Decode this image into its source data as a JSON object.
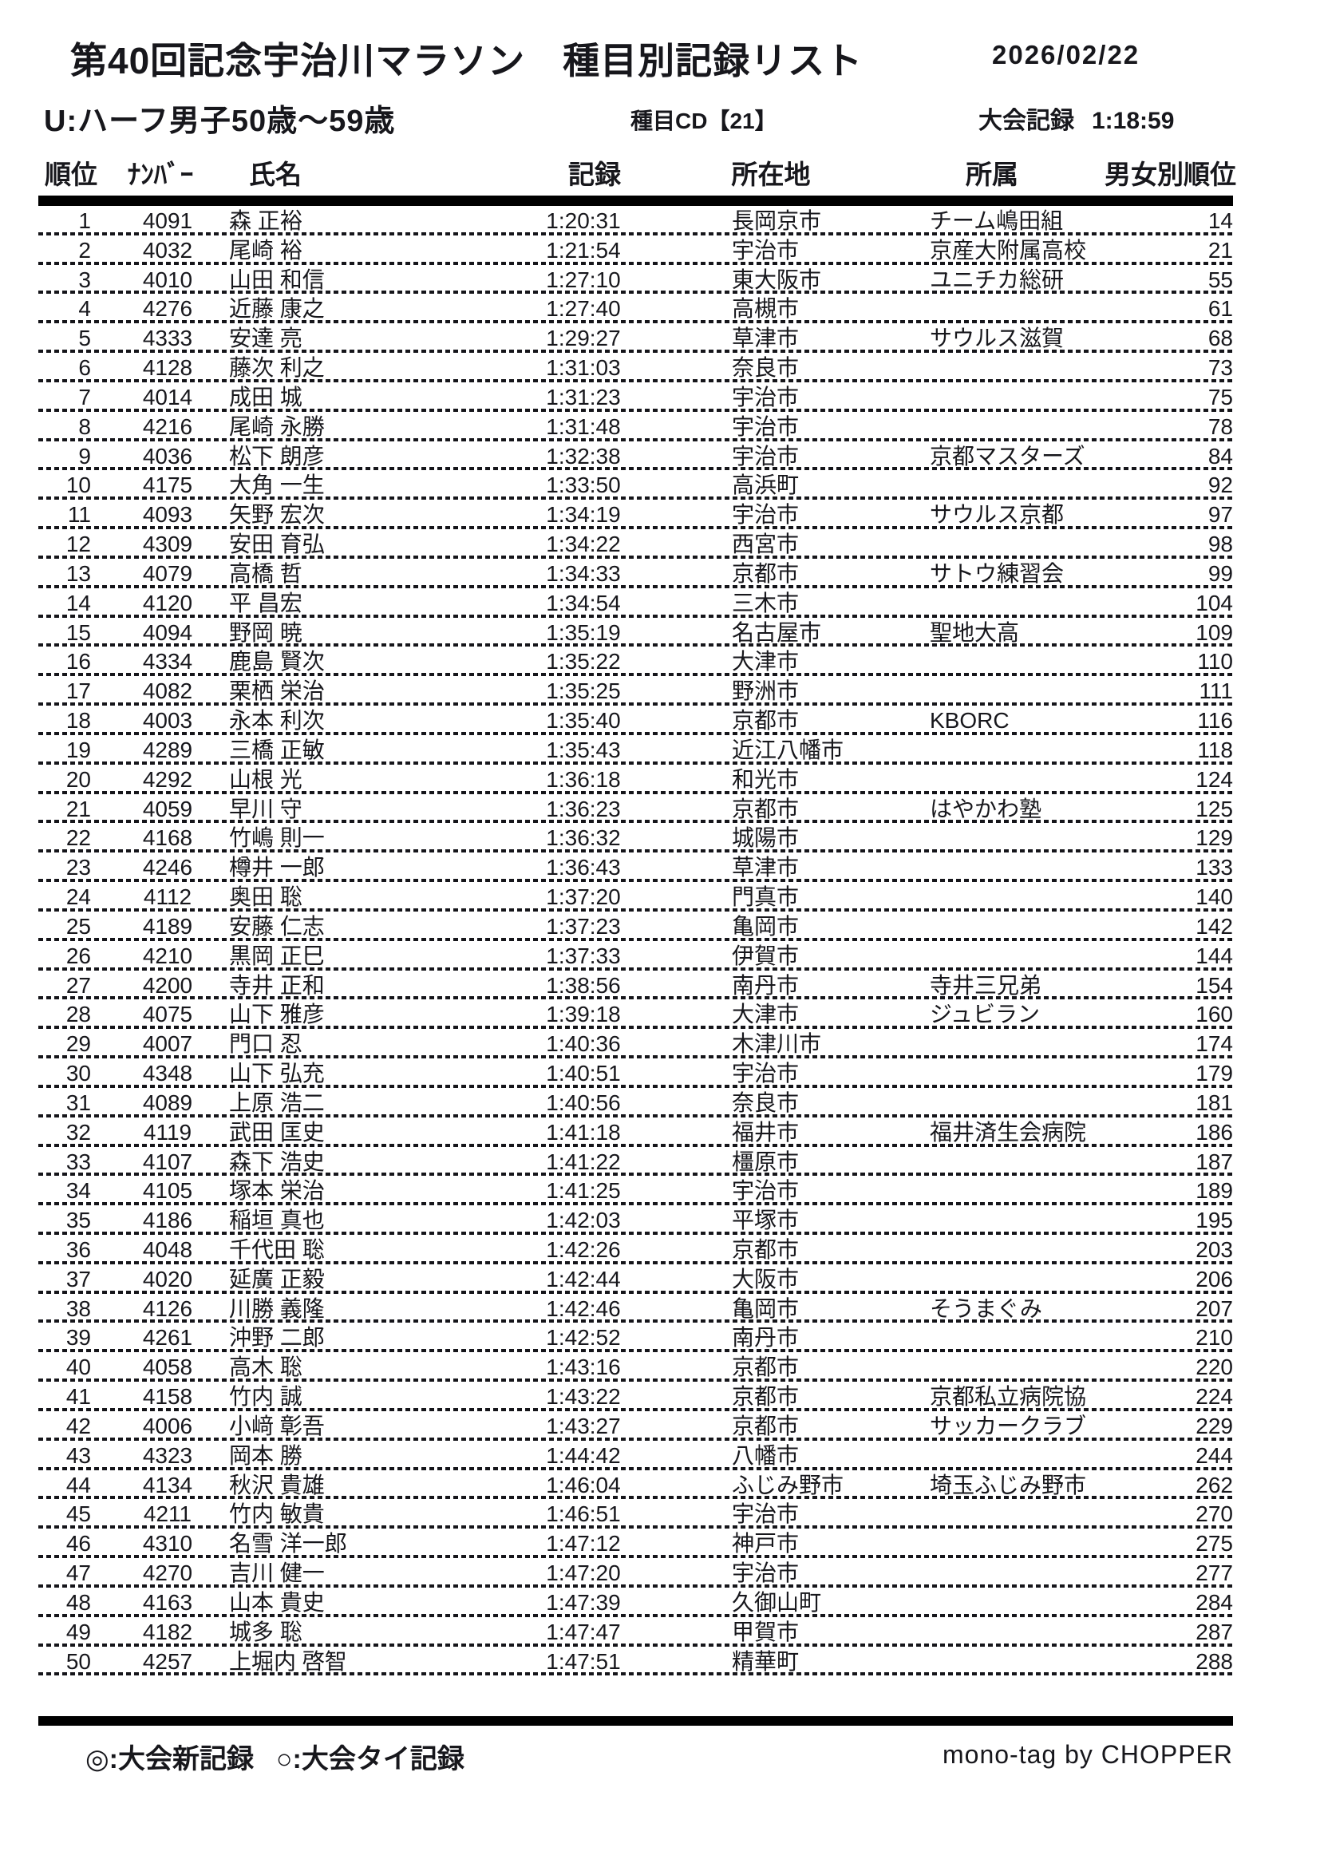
{
  "page": {
    "title": "第40回記念宇治川マラソン　種目別記録リスト",
    "date": "2026/02/22",
    "category": "U:ハーフ男子50歳～59歳",
    "event_cd": "種目CD【21】",
    "meet_record_label": "大会記録",
    "meet_record_value": "1:18:59"
  },
  "table": {
    "headers": {
      "rank": "順位",
      "number": "ﾅﾝﾊﾞｰ",
      "name": "氏名",
      "record": "記録",
      "location": "所在地",
      "affiliation": "所属",
      "gender_rank": "男女別順位"
    },
    "rows": [
      {
        "rank": "1",
        "number": "4091",
        "name": "森 正裕",
        "record": "1:20:31",
        "location": "長岡京市",
        "affiliation": "チーム嶋田組",
        "gender_rank": "14"
      },
      {
        "rank": "2",
        "number": "4032",
        "name": "尾崎 裕",
        "record": "1:21:54",
        "location": "宇治市",
        "affiliation": "京産大附属高校",
        "gender_rank": "21"
      },
      {
        "rank": "3",
        "number": "4010",
        "name": "山田 和信",
        "record": "1:27:10",
        "location": "東大阪市",
        "affiliation": "ユニチカ総研",
        "gender_rank": "55"
      },
      {
        "rank": "4",
        "number": "4276",
        "name": "近藤 康之",
        "record": "1:27:40",
        "location": "高槻市",
        "affiliation": "",
        "gender_rank": "61"
      },
      {
        "rank": "5",
        "number": "4333",
        "name": "安達 亮",
        "record": "1:29:27",
        "location": "草津市",
        "affiliation": "サウルス滋賀",
        "gender_rank": "68"
      },
      {
        "rank": "6",
        "number": "4128",
        "name": "藤次 利之",
        "record": "1:31:03",
        "location": "奈良市",
        "affiliation": "",
        "gender_rank": "73"
      },
      {
        "rank": "7",
        "number": "4014",
        "name": "成田 城",
        "record": "1:31:23",
        "location": "宇治市",
        "affiliation": "",
        "gender_rank": "75"
      },
      {
        "rank": "8",
        "number": "4216",
        "name": "尾崎 永勝",
        "record": "1:31:48",
        "location": "宇治市",
        "affiliation": "",
        "gender_rank": "78"
      },
      {
        "rank": "9",
        "number": "4036",
        "name": "松下 朗彦",
        "record": "1:32:38",
        "location": "宇治市",
        "affiliation": "京都マスターズ",
        "gender_rank": "84"
      },
      {
        "rank": "10",
        "number": "4175",
        "name": "大角 一生",
        "record": "1:33:50",
        "location": "高浜町",
        "affiliation": "",
        "gender_rank": "92"
      },
      {
        "rank": "11",
        "number": "4093",
        "name": "矢野 宏次",
        "record": "1:34:19",
        "location": "宇治市",
        "affiliation": "サウルス京都",
        "gender_rank": "97"
      },
      {
        "rank": "12",
        "number": "4309",
        "name": "安田 育弘",
        "record": "1:34:22",
        "location": "西宮市",
        "affiliation": "",
        "gender_rank": "98"
      },
      {
        "rank": "13",
        "number": "4079",
        "name": "高橋 哲",
        "record": "1:34:33",
        "location": "京都市",
        "affiliation": "サトウ練習会",
        "gender_rank": "99"
      },
      {
        "rank": "14",
        "number": "4120",
        "name": "平 昌宏",
        "record": "1:34:54",
        "location": "三木市",
        "affiliation": "",
        "gender_rank": "104"
      },
      {
        "rank": "15",
        "number": "4094",
        "name": "野岡 暁",
        "record": "1:35:19",
        "location": "名古屋市",
        "affiliation": "聖地大高",
        "gender_rank": "109"
      },
      {
        "rank": "16",
        "number": "4334",
        "name": "鹿島 賢次",
        "record": "1:35:22",
        "location": "大津市",
        "affiliation": "",
        "gender_rank": "110"
      },
      {
        "rank": "17",
        "number": "4082",
        "name": "栗栖 栄治",
        "record": "1:35:25",
        "location": "野洲市",
        "affiliation": "",
        "gender_rank": "111"
      },
      {
        "rank": "18",
        "number": "4003",
        "name": "永本 利次",
        "record": "1:35:40",
        "location": "京都市",
        "affiliation": "KBORC",
        "gender_rank": "116"
      },
      {
        "rank": "19",
        "number": "4289",
        "name": "三橋 正敏",
        "record": "1:35:43",
        "location": "近江八幡市",
        "affiliation": "",
        "gender_rank": "118"
      },
      {
        "rank": "20",
        "number": "4292",
        "name": "山根 光",
        "record": "1:36:18",
        "location": "和光市",
        "affiliation": "",
        "gender_rank": "124"
      },
      {
        "rank": "21",
        "number": "4059",
        "name": "早川 守",
        "record": "1:36:23",
        "location": "京都市",
        "affiliation": "はやかわ塾",
        "gender_rank": "125"
      },
      {
        "rank": "22",
        "number": "4168",
        "name": "竹嶋 則一",
        "record": "1:36:32",
        "location": "城陽市",
        "affiliation": "",
        "gender_rank": "129"
      },
      {
        "rank": "23",
        "number": "4246",
        "name": "樽井 一郎",
        "record": "1:36:43",
        "location": "草津市",
        "affiliation": "",
        "gender_rank": "133"
      },
      {
        "rank": "24",
        "number": "4112",
        "name": "奥田 聡",
        "record": "1:37:20",
        "location": "門真市",
        "affiliation": "",
        "gender_rank": "140"
      },
      {
        "rank": "25",
        "number": "4189",
        "name": "安藤 仁志",
        "record": "1:37:23",
        "location": "亀岡市",
        "affiliation": "",
        "gender_rank": "142"
      },
      {
        "rank": "26",
        "number": "4210",
        "name": "黒岡 正巳",
        "record": "1:37:33",
        "location": "伊賀市",
        "affiliation": "",
        "gender_rank": "144"
      },
      {
        "rank": "27",
        "number": "4200",
        "name": "寺井 正和",
        "record": "1:38:56",
        "location": "南丹市",
        "affiliation": "寺井三兄弟",
        "gender_rank": "154"
      },
      {
        "rank": "28",
        "number": "4075",
        "name": "山下 雅彦",
        "record": "1:39:18",
        "location": "大津市",
        "affiliation": "ジュビラン",
        "gender_rank": "160"
      },
      {
        "rank": "29",
        "number": "4007",
        "name": "門口 忍",
        "record": "1:40:36",
        "location": "木津川市",
        "affiliation": "",
        "gender_rank": "174"
      },
      {
        "rank": "30",
        "number": "4348",
        "name": "山下 弘充",
        "record": "1:40:51",
        "location": "宇治市",
        "affiliation": "",
        "gender_rank": "179"
      },
      {
        "rank": "31",
        "number": "4089",
        "name": "上原 浩二",
        "record": "1:40:56",
        "location": "奈良市",
        "affiliation": "",
        "gender_rank": "181"
      },
      {
        "rank": "32",
        "number": "4119",
        "name": "武田 匡史",
        "record": "1:41:18",
        "location": "福井市",
        "affiliation": "福井済生会病院",
        "gender_rank": "186"
      },
      {
        "rank": "33",
        "number": "4107",
        "name": "森下 浩史",
        "record": "1:41:22",
        "location": "橿原市",
        "affiliation": "",
        "gender_rank": "187"
      },
      {
        "rank": "34",
        "number": "4105",
        "name": "塚本 栄治",
        "record": "1:41:25",
        "location": "宇治市",
        "affiliation": "",
        "gender_rank": "189"
      },
      {
        "rank": "35",
        "number": "4186",
        "name": "稲垣 真也",
        "record": "1:42:03",
        "location": "平塚市",
        "affiliation": "",
        "gender_rank": "195"
      },
      {
        "rank": "36",
        "number": "4048",
        "name": "千代田 聡",
        "record": "1:42:26",
        "location": "京都市",
        "affiliation": "",
        "gender_rank": "203"
      },
      {
        "rank": "37",
        "number": "4020",
        "name": "延廣 正毅",
        "record": "1:42:44",
        "location": "大阪市",
        "affiliation": "",
        "gender_rank": "206"
      },
      {
        "rank": "38",
        "number": "4126",
        "name": "川勝 義隆",
        "record": "1:42:46",
        "location": "亀岡市",
        "affiliation": "そうまぐみ",
        "gender_rank": "207"
      },
      {
        "rank": "39",
        "number": "4261",
        "name": "沖野 二郎",
        "record": "1:42:52",
        "location": "南丹市",
        "affiliation": "",
        "gender_rank": "210"
      },
      {
        "rank": "40",
        "number": "4058",
        "name": "高木 聡",
        "record": "1:43:16",
        "location": "京都市",
        "affiliation": "",
        "gender_rank": "220"
      },
      {
        "rank": "41",
        "number": "4158",
        "name": "竹内 誠",
        "record": "1:43:22",
        "location": "京都市",
        "affiliation": "京都私立病院協",
        "gender_rank": "224"
      },
      {
        "rank": "42",
        "number": "4006",
        "name": "小﨑 彰吾",
        "record": "1:43:27",
        "location": "京都市",
        "affiliation": "サッカークラブ",
        "gender_rank": "229"
      },
      {
        "rank": "43",
        "number": "4323",
        "name": "岡本 勝",
        "record": "1:44:42",
        "location": "八幡市",
        "affiliation": "",
        "gender_rank": "244"
      },
      {
        "rank": "44",
        "number": "4134",
        "name": "秋沢 貴雄",
        "record": "1:46:04",
        "location": "ふじみ野市",
        "affiliation": "埼玉ふじみ野市",
        "gender_rank": "262"
      },
      {
        "rank": "45",
        "number": "4211",
        "name": "竹内 敏貴",
        "record": "1:46:51",
        "location": "宇治市",
        "affiliation": "",
        "gender_rank": "270"
      },
      {
        "rank": "46",
        "number": "4310",
        "name": "名雪 洋一郎",
        "record": "1:47:12",
        "location": "神戸市",
        "affiliation": "",
        "gender_rank": "275"
      },
      {
        "rank": "47",
        "number": "4270",
        "name": "吉川 健一",
        "record": "1:47:20",
        "location": "宇治市",
        "affiliation": "",
        "gender_rank": "277"
      },
      {
        "rank": "48",
        "number": "4163",
        "name": "山本 貴史",
        "record": "1:47:39",
        "location": "久御山町",
        "affiliation": "",
        "gender_rank": "284"
      },
      {
        "rank": "49",
        "number": "4182",
        "name": "城多 聡",
        "record": "1:47:47",
        "location": "甲賀市",
        "affiliation": "",
        "gender_rank": "287"
      },
      {
        "rank": "50",
        "number": "4257",
        "name": "上堀内 啓智",
        "record": "1:47:51",
        "location": "精華町",
        "affiliation": "",
        "gender_rank": "288"
      }
    ]
  },
  "footer": {
    "legend_new": "◎:大会新記録",
    "legend_tie": "○:大会タイ記録",
    "credit": "mono-tag by CHOPPER"
  },
  "colors": {
    "text": "#17171c",
    "bar": "#000000"
  }
}
